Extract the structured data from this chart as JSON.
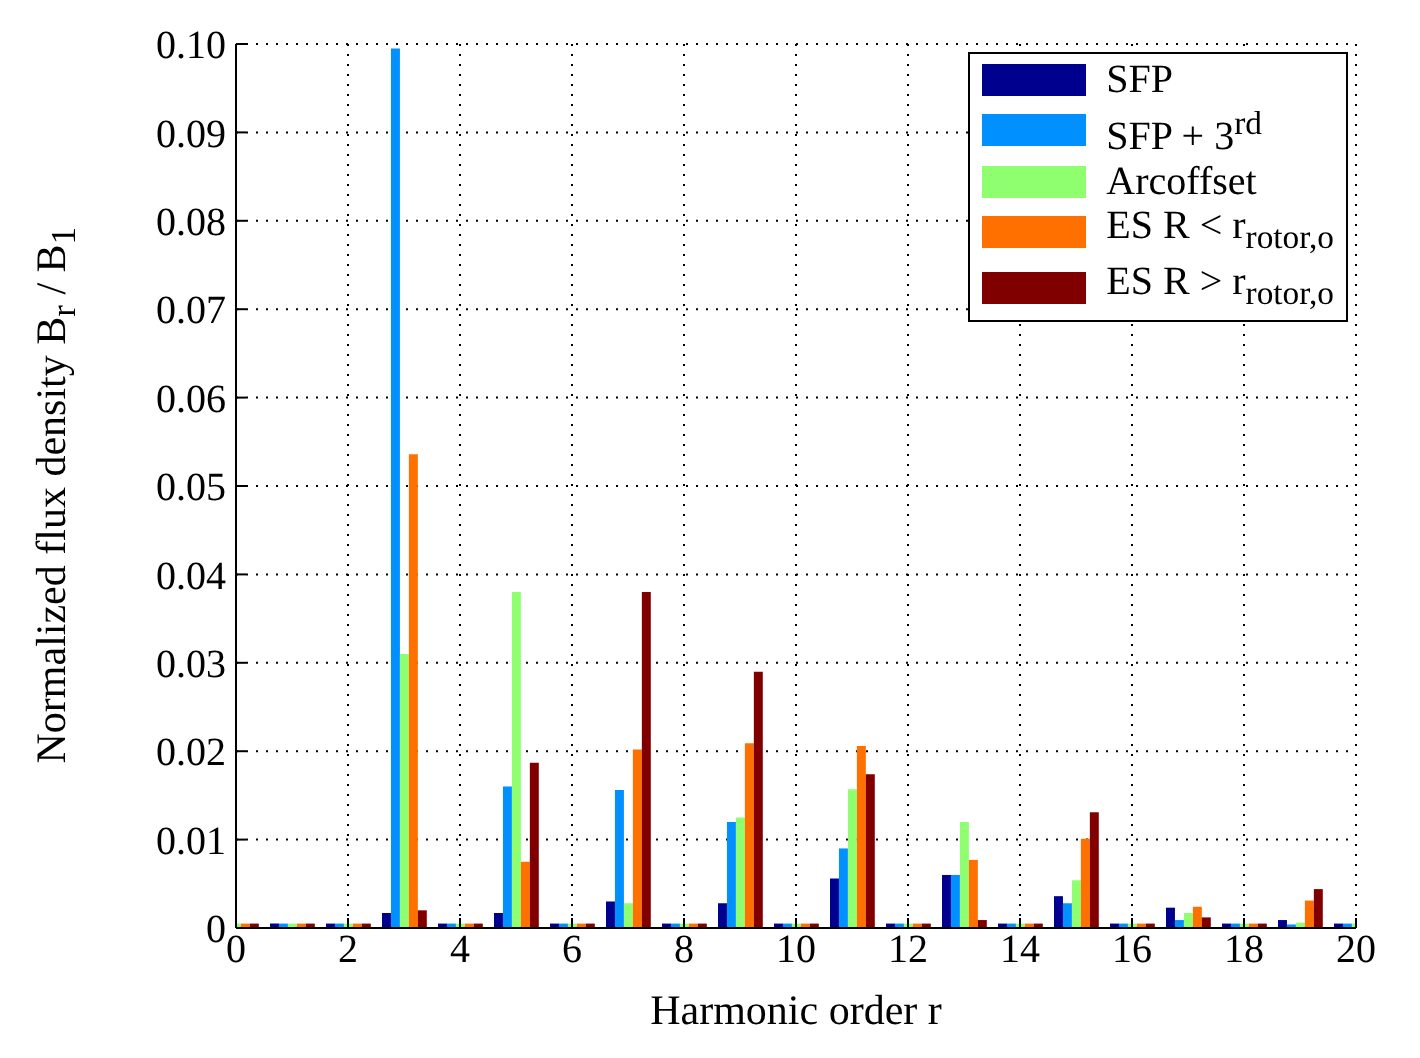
{
  "chart_data": {
    "type": "bar",
    "xlabel": "Harmonic order r",
    "ylabel": "Normalized flux density B$_{r}$ / B$_{1}$",
    "x": [
      0,
      1,
      2,
      3,
      4,
      5,
      6,
      7,
      8,
      9,
      10,
      11,
      12,
      13,
      14,
      15,
      16,
      17,
      18,
      19,
      20
    ],
    "series": [
      {
        "name": "SFP",
        "color": "#00008f",
        "values": [
          null,
          0.0005,
          0.0005,
          0.0017,
          0.0005,
          0.0017,
          0.0005,
          0.003,
          0.0005,
          0.0028,
          0.0005,
          0.0056,
          0.0005,
          0.006,
          0.0005,
          0.0036,
          0.0005,
          0.0023,
          0.0005,
          0.0009,
          0.0005
        ]
      },
      {
        "name": "SFP + 3$^{rd}$",
        "color": "#0090ff",
        "values": [
          null,
          0.0005,
          0.0005,
          0.0995,
          0.0005,
          0.016,
          0.0005,
          0.0156,
          0.0005,
          0.012,
          0.0005,
          0.009,
          0.0005,
          0.006,
          0.0005,
          0.0028,
          0.0005,
          0.0009,
          0.0005,
          0.0004,
          0.0005
        ]
      },
      {
        "name": "Arcoffset",
        "color": "#8fff70",
        "values": [
          0.0005,
          0.0005,
          0.0005,
          0.031,
          0.0005,
          0.038,
          0.0005,
          0.0028,
          0.0005,
          0.0125,
          0.0005,
          0.0157,
          0.0005,
          0.012,
          0.0005,
          0.0054,
          0.0005,
          0.0017,
          0.0005,
          0.0006,
          0.0005
        ]
      },
      {
        "name": "ES R < r$_{rotor,o}$",
        "color": "#ff7000",
        "values": [
          0.0005,
          0.0005,
          0.0005,
          0.0536,
          0.0005,
          0.0075,
          0.0005,
          0.0202,
          0.0005,
          0.0209,
          0.0005,
          0.0206,
          0.0005,
          0.0077,
          0.0005,
          0.0101,
          0.0005,
          0.0024,
          0.0005,
          0.0031,
          null
        ]
      },
      {
        "name": "ES R > r$_{rotor,o}$",
        "color": "#800000",
        "values": [
          0.0005,
          0.0005,
          0.0005,
          0.002,
          0.0005,
          0.0187,
          0.0005,
          0.038,
          0.0005,
          0.029,
          0.0005,
          0.0174,
          0.0005,
          0.0009,
          0.0005,
          0.0131,
          0.0005,
          0.0012,
          0.0005,
          0.0044,
          null
        ]
      }
    ],
    "xlim": [
      0,
      20
    ],
    "xticks": [
      0,
      2,
      4,
      6,
      8,
      10,
      12,
      14,
      16,
      18,
      20
    ],
    "ylim": [
      0,
      0.1
    ],
    "yticks": [
      0,
      0.01,
      0.02,
      0.03,
      0.04,
      0.05,
      0.06,
      0.07,
      0.08,
      0.09,
      {
        "value": 0.1,
        "label": "0.10"
      }
    ],
    "grid": true,
    "legend": "top right"
  }
}
